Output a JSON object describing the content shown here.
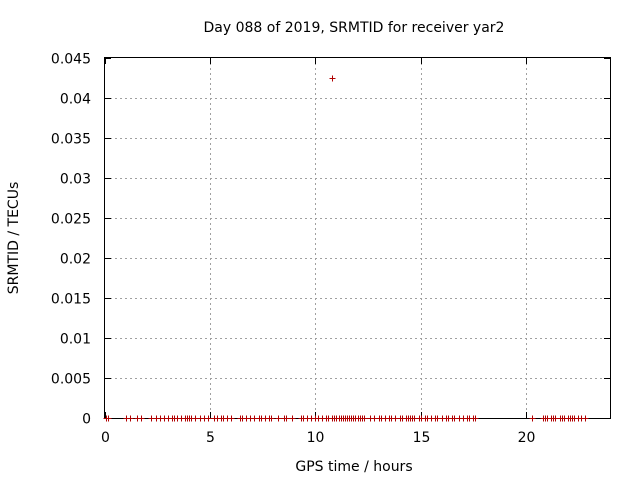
{
  "chart_data": {
    "type": "scatter",
    "title": "Day 088 of 2019, SRMTID for receiver yar2",
    "xlabel": "GPS time / hours",
    "ylabel": "SRMTID / TECUs",
    "xlim": [
      0,
      24
    ],
    "ylim": [
      0,
      0.045
    ],
    "xticks": [
      0,
      5,
      10,
      15,
      20
    ],
    "xtick_labels": [
      "0",
      "5",
      "10",
      "15",
      "20"
    ],
    "yticks": [
      0,
      0.005,
      0.01,
      0.015,
      0.02,
      0.025,
      0.03,
      0.035,
      0.04,
      0.045
    ],
    "ytick_labels": [
      "0",
      "0.005",
      "0.01",
      "0.015",
      "0.02",
      "0.025",
      "0.03",
      "0.035",
      "0.04",
      "0.045"
    ],
    "grid": true,
    "marker": "+",
    "marker_color": "#b00000",
    "series": [
      {
        "name": "SRMTID",
        "points": [
          {
            "x": 0.05,
            "y": 0
          },
          {
            "x": 0.15,
            "y": 0
          },
          {
            "x": 1.0,
            "y": 0
          },
          {
            "x": 1.2,
            "y": 0
          },
          {
            "x": 1.5,
            "y": 0
          },
          {
            "x": 1.7,
            "y": 0
          },
          {
            "x": 2.2,
            "y": 0
          },
          {
            "x": 2.4,
            "y": 0
          },
          {
            "x": 2.6,
            "y": 0
          },
          {
            "x": 2.8,
            "y": 0
          },
          {
            "x": 3.0,
            "y": 0
          },
          {
            "x": 3.2,
            "y": 0
          },
          {
            "x": 3.3,
            "y": 0
          },
          {
            "x": 3.4,
            "y": 0
          },
          {
            "x": 3.6,
            "y": 0
          },
          {
            "x": 3.8,
            "y": 0
          },
          {
            "x": 3.9,
            "y": 0
          },
          {
            "x": 4.0,
            "y": 0
          },
          {
            "x": 4.1,
            "y": 0
          },
          {
            "x": 4.3,
            "y": 0
          },
          {
            "x": 4.5,
            "y": 0
          },
          {
            "x": 4.7,
            "y": 0
          },
          {
            "x": 4.9,
            "y": 0
          },
          {
            "x": 5.2,
            "y": 0
          },
          {
            "x": 5.3,
            "y": 0
          },
          {
            "x": 5.5,
            "y": 0
          },
          {
            "x": 5.6,
            "y": 0
          },
          {
            "x": 5.8,
            "y": 0
          },
          {
            "x": 6.0,
            "y": 0
          },
          {
            "x": 6.4,
            "y": 0
          },
          {
            "x": 6.5,
            "y": 0
          },
          {
            "x": 6.7,
            "y": 0
          },
          {
            "x": 6.9,
            "y": 0
          },
          {
            "x": 7.1,
            "y": 0
          },
          {
            "x": 7.3,
            "y": 0
          },
          {
            "x": 7.4,
            "y": 0
          },
          {
            "x": 7.6,
            "y": 0
          },
          {
            "x": 7.8,
            "y": 0
          },
          {
            "x": 7.9,
            "y": 0
          },
          {
            "x": 8.2,
            "y": 0
          },
          {
            "x": 8.5,
            "y": 0
          },
          {
            "x": 8.6,
            "y": 0
          },
          {
            "x": 8.9,
            "y": 0
          },
          {
            "x": 9.3,
            "y": 0
          },
          {
            "x": 9.4,
            "y": 0
          },
          {
            "x": 9.6,
            "y": 0
          },
          {
            "x": 9.8,
            "y": 0
          },
          {
            "x": 10.0,
            "y": 0
          },
          {
            "x": 10.1,
            "y": 0
          },
          {
            "x": 10.3,
            "y": 0
          },
          {
            "x": 10.5,
            "y": 0
          },
          {
            "x": 10.6,
            "y": 0
          },
          {
            "x": 10.8,
            "y": 0.0425
          },
          {
            "x": 10.8,
            "y": 0
          },
          {
            "x": 10.9,
            "y": 0
          },
          {
            "x": 11.0,
            "y": 0
          },
          {
            "x": 11.1,
            "y": 0
          },
          {
            "x": 11.2,
            "y": 0
          },
          {
            "x": 11.3,
            "y": 0
          },
          {
            "x": 11.4,
            "y": 0
          },
          {
            "x": 11.5,
            "y": 0
          },
          {
            "x": 11.6,
            "y": 0
          },
          {
            "x": 11.7,
            "y": 0
          },
          {
            "x": 11.8,
            "y": 0
          },
          {
            "x": 11.9,
            "y": 0
          },
          {
            "x": 12.0,
            "y": 0
          },
          {
            "x": 12.1,
            "y": 0
          },
          {
            "x": 12.2,
            "y": 0
          },
          {
            "x": 12.3,
            "y": 0
          },
          {
            "x": 12.6,
            "y": 0
          },
          {
            "x": 12.8,
            "y": 0
          },
          {
            "x": 13.0,
            "y": 0
          },
          {
            "x": 13.1,
            "y": 0
          },
          {
            "x": 13.3,
            "y": 0
          },
          {
            "x": 13.5,
            "y": 0
          },
          {
            "x": 13.6,
            "y": 0
          },
          {
            "x": 13.8,
            "y": 0
          },
          {
            "x": 14.0,
            "y": 0
          },
          {
            "x": 14.1,
            "y": 0
          },
          {
            "x": 14.3,
            "y": 0
          },
          {
            "x": 14.4,
            "y": 0
          },
          {
            "x": 14.5,
            "y": 0
          },
          {
            "x": 14.6,
            "y": 0
          },
          {
            "x": 14.7,
            "y": 0
          },
          {
            "x": 14.9,
            "y": 0
          },
          {
            "x": 15.0,
            "y": 0
          },
          {
            "x": 15.2,
            "y": 0
          },
          {
            "x": 15.3,
            "y": 0
          },
          {
            "x": 15.5,
            "y": 0
          },
          {
            "x": 15.7,
            "y": 0
          },
          {
            "x": 15.8,
            "y": 0
          },
          {
            "x": 16.0,
            "y": 0
          },
          {
            "x": 16.2,
            "y": 0
          },
          {
            "x": 16.3,
            "y": 0
          },
          {
            "x": 16.5,
            "y": 0
          },
          {
            "x": 16.6,
            "y": 0
          },
          {
            "x": 16.8,
            "y": 0
          },
          {
            "x": 17.0,
            "y": 0
          },
          {
            "x": 17.2,
            "y": 0
          },
          {
            "x": 17.3,
            "y": 0
          },
          {
            "x": 17.5,
            "y": 0
          },
          {
            "x": 17.6,
            "y": 0
          },
          {
            "x": 20.3,
            "y": 0
          },
          {
            "x": 20.8,
            "y": 0
          },
          {
            "x": 20.9,
            "y": 0
          },
          {
            "x": 21.0,
            "y": 0
          },
          {
            "x": 21.2,
            "y": 0
          },
          {
            "x": 21.3,
            "y": 0
          },
          {
            "x": 21.4,
            "y": 0
          },
          {
            "x": 21.6,
            "y": 0
          },
          {
            "x": 21.7,
            "y": 0
          },
          {
            "x": 21.8,
            "y": 0
          },
          {
            "x": 22.0,
            "y": 0
          },
          {
            "x": 22.1,
            "y": 0
          },
          {
            "x": 22.2,
            "y": 0
          },
          {
            "x": 22.3,
            "y": 0
          },
          {
            "x": 22.5,
            "y": 0
          },
          {
            "x": 22.6,
            "y": 0
          },
          {
            "x": 22.8,
            "y": 0
          }
        ]
      }
    ]
  }
}
